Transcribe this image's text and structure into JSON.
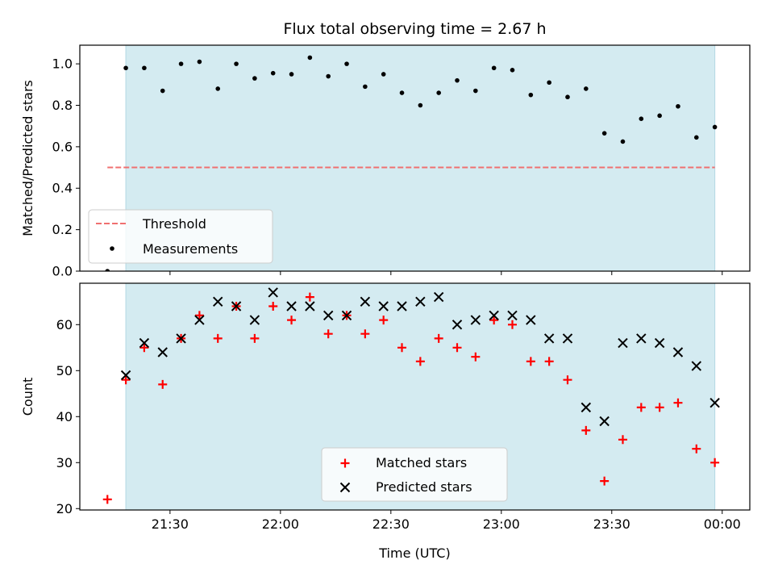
{
  "chart_data": [
    {
      "type": "scatter",
      "title": "Flux total observing time = 2.67 h",
      "xlabel": "",
      "ylabel": "Matched/Predicted stars",
      "x_ticks": [
        "21:30",
        "22:00",
        "22:30",
        "23:00",
        "23:30",
        "00:00"
      ],
      "x_tick_values": [
        90,
        120,
        150,
        180,
        210,
        240
      ],
      "y_ticks": [
        "0.0",
        "0.2",
        "0.4",
        "0.6",
        "0.8",
        "1.0"
      ],
      "y_tick_values": [
        0.0,
        0.2,
        0.4,
        0.6,
        0.8,
        1.0
      ],
      "xlim": [
        65.5,
        247.5
      ],
      "ylim": [
        0.0,
        1.09
      ],
      "observing_span": [
        78,
        238
      ],
      "threshold": {
        "name": "Threshold",
        "value": 0.5,
        "x_range": [
          73,
          238
        ],
        "color": "#f07070"
      },
      "legend": [
        "Threshold",
        "Measurements"
      ],
      "legend_position": "lower-left",
      "series": [
        {
          "name": "Measurements",
          "marker": "dot",
          "color": "#000000",
          "x": [
            73,
            78,
            83,
            88,
            93,
            98,
            103,
            108,
            113,
            118,
            123,
            128,
            133,
            138,
            143,
            148,
            153,
            158,
            163,
            168,
            173,
            178,
            183,
            188,
            193,
            198,
            203,
            208,
            213,
            218,
            223,
            228,
            233,
            238
          ],
          "values": [
            0.0,
            0.98,
            0.98,
            0.87,
            1.0,
            1.01,
            0.88,
            1.0,
            0.93,
            0.955,
            0.95,
            1.03,
            0.94,
            1.0,
            0.89,
            0.95,
            0.86,
            0.8,
            0.86,
            0.92,
            0.87,
            0.98,
            0.97,
            0.85,
            0.91,
            0.84,
            0.88,
            0.665,
            0.625,
            0.735,
            0.75,
            0.795,
            0.645,
            0.695
          ]
        }
      ]
    },
    {
      "type": "scatter",
      "title": "",
      "xlabel": "Time (UTC)",
      "ylabel": "Count",
      "x_ticks": [
        "21:30",
        "22:00",
        "22:30",
        "23:00",
        "23:30",
        "00:00"
      ],
      "x_tick_values": [
        90,
        120,
        150,
        180,
        210,
        240
      ],
      "y_ticks": [
        "20",
        "30",
        "40",
        "50",
        "60"
      ],
      "y_tick_values": [
        20,
        30,
        40,
        50,
        60
      ],
      "xlim": [
        65.5,
        247.5
      ],
      "ylim": [
        19.7,
        69.0
      ],
      "observing_span": [
        78,
        238
      ],
      "legend": [
        "Matched stars",
        "Predicted stars"
      ],
      "legend_position": "lower-center",
      "series": [
        {
          "name": "Matched stars",
          "marker": "plus",
          "color": "#ff0000",
          "x": [
            73,
            78,
            83,
            88,
            93,
            98,
            103,
            108,
            113,
            118,
            123,
            128,
            133,
            138,
            143,
            148,
            153,
            158,
            163,
            168,
            173,
            178,
            183,
            188,
            193,
            198,
            203,
            208,
            213,
            218,
            223,
            228,
            233,
            238
          ],
          "values": [
            22,
            48,
            55,
            47,
            57,
            62,
            57,
            64,
            57,
            64,
            61,
            66,
            58,
            62,
            58,
            61,
            55,
            52,
            57,
            55,
            53,
            61,
            60,
            52,
            52,
            48,
            37,
            26,
            35,
            42,
            42,
            43,
            33,
            30
          ]
        },
        {
          "name": "Predicted stars",
          "marker": "x",
          "color": "#000000",
          "x": [
            78,
            83,
            88,
            93,
            98,
            103,
            108,
            113,
            118,
            123,
            128,
            133,
            138,
            143,
            148,
            153,
            158,
            163,
            168,
            173,
            178,
            183,
            188,
            193,
            198,
            203,
            208,
            213,
            218,
            223,
            228,
            233,
            238
          ],
          "values": [
            49,
            56,
            54,
            57,
            61,
            65,
            64,
            61,
            67,
            64,
            64,
            62,
            62,
            65,
            64,
            64,
            65,
            66,
            60,
            61,
            62,
            62,
            61,
            57,
            57,
            42,
            39,
            56,
            57,
            56,
            54,
            51,
            43
          ]
        }
      ]
    }
  ],
  "colors": {
    "span_fill": "#d4ebf1",
    "span_edge": "#b3d8e3"
  }
}
